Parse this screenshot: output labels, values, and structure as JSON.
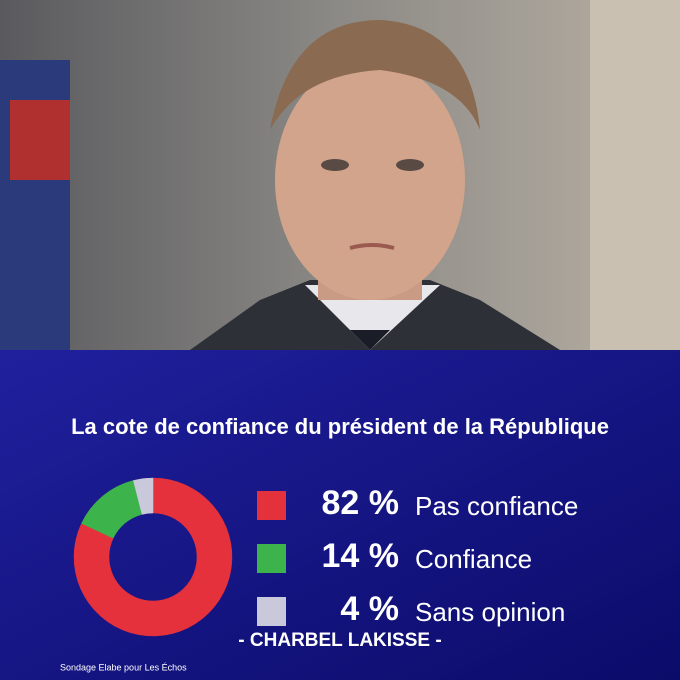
{
  "chart_data": {
    "type": "pie",
    "title": "La cote de confiance du président de la République",
    "categories": [
      "Pas confiance",
      "Confiance",
      "Sans opinion"
    ],
    "values": [
      82,
      14,
      4
    ],
    "value_labels": [
      "82 %",
      "14 %",
      "4 %"
    ],
    "colors": [
      "#e4313c",
      "#3db34b",
      "#c9c9db"
    ],
    "donut": true,
    "annotation": "- CHARBEL LAKISSE -",
    "source": "Sondage Elabe pour Les Échos"
  }
}
